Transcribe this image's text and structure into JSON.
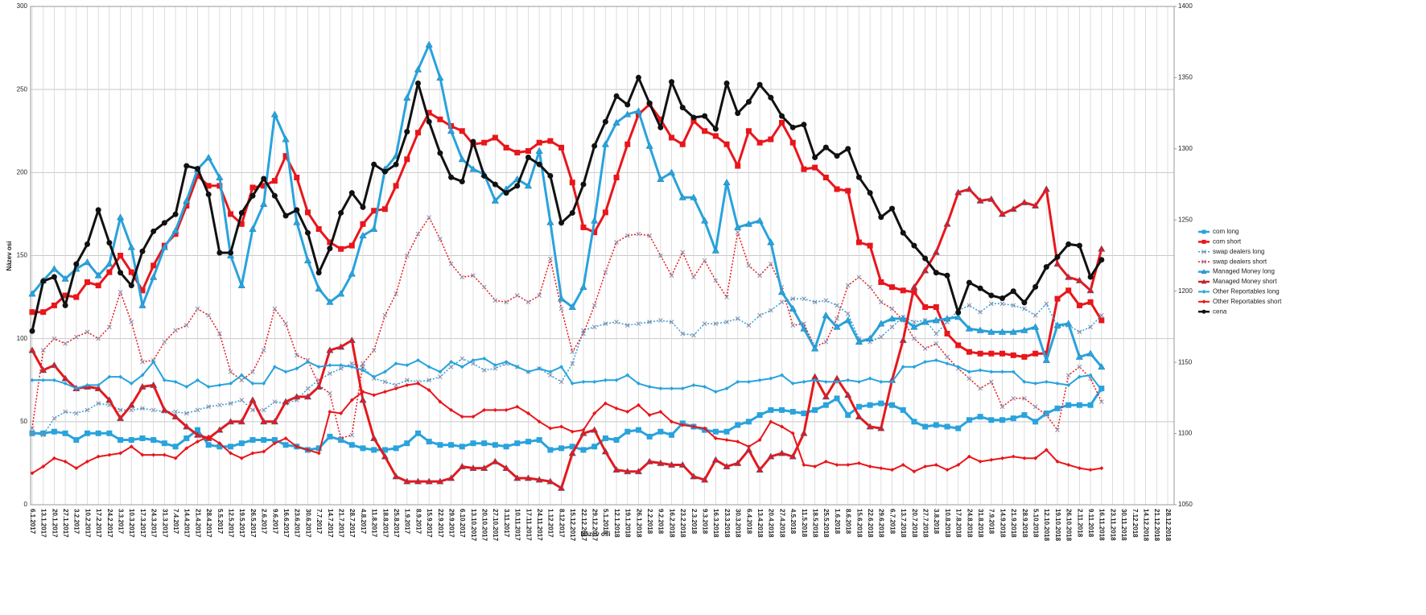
{
  "chart_data": {
    "type": "line",
    "x_label": "Název osi",
    "y_label": "Název osi",
    "grid": true,
    "legend": "right",
    "ylim": [
      0,
      300
    ],
    "yticks": [
      0,
      50,
      100,
      150,
      200,
      250,
      300
    ],
    "y2lim": [
      1050,
      1400
    ],
    "y2ticks": [
      1050,
      1100,
      1150,
      1200,
      1250,
      1300,
      1350,
      1400
    ],
    "categories": [
      "6.1.2017",
      "13.1.2017",
      "20.1.2017",
      "27.1.2017",
      "3.2.2017",
      "10.2.2017",
      "17.2.2017",
      "24.2.2017",
      "3.3.2017",
      "10.3.2017",
      "17.3.2017",
      "24.3.2017",
      "31.3.2017",
      "7.4.2017",
      "14.4.2017",
      "21.4.2017",
      "28.4.2017",
      "5.5.2017",
      "12.5.2017",
      "19.5.2017",
      "26.5.2017",
      "2.6.2017",
      "9.6.2017",
      "16.6.2017",
      "23.6.2017",
      "30.6.2017",
      "7.7.2017",
      "14.7.2017",
      "21.7.2017",
      "28.7.2017",
      "4.8.2017",
      "11.8.2017",
      "18.8.2017",
      "25.8.2017",
      "1.9.2017",
      "8.9.2017",
      "15.9.2017",
      "22.9.2017",
      "29.9.2017",
      "6.10.2017",
      "13.10.2017",
      "20.10.2017",
      "27.10.2017",
      "3.11.2017",
      "10.11.2017",
      "17.11.2017",
      "24.11.2017",
      "1.12.2017",
      "8.12.2017",
      "15.12.2017",
      "22.12.2017",
      "29.12.2017",
      "5.1.2018",
      "12.1.2018",
      "19.1.2018",
      "26.1.2018",
      "2.2.2018",
      "9.2.2018",
      "16.2.2018",
      "23.2.2018",
      "2.3.2018",
      "9.3.2018",
      "16.3.2018",
      "23.3.2018",
      "30.3.2018",
      "6.4.2018",
      "13.4.2018",
      "20.4.2018",
      "27.4.2018",
      "4.5.2018",
      "11.5.2018",
      "18.5.2018",
      "25.5.2018",
      "1.6.2018",
      "8.6.2018",
      "15.6.2018",
      "22.6.2018",
      "29.6.2018",
      "6.7.2018",
      "13.7.2018",
      "20.7.2018",
      "27.7.2018",
      "3.8.2018",
      "10.8.2018",
      "17.8.2018",
      "24.8.2018",
      "31.8.2018",
      "7.9.2018",
      "14.9.2018",
      "21.9.2018",
      "28.9.2018",
      "5.10.2018",
      "12.10.2018",
      "19.10.2018",
      "26.10.2018",
      "2.11.2018",
      "9.11.2018",
      "16.11.2018",
      "23.11.2018",
      "30.11.2018",
      "7.12.2018",
      "14.12.2018",
      "21.12.2018",
      "28.12.2018"
    ],
    "series": [
      {
        "name": "com long",
        "color": "#29a3dc",
        "marker": "square",
        "dashed": false,
        "width": 3,
        "values": [
          43,
          43,
          44,
          43,
          39,
          43,
          43,
          43,
          39,
          39,
          40,
          39,
          37,
          35,
          40,
          45,
          36,
          35,
          35,
          37,
          39,
          39,
          39,
          36,
          35,
          33,
          34,
          41,
          39,
          36,
          34,
          33,
          33,
          34,
          37,
          43,
          38,
          36,
          36,
          35,
          37,
          37,
          36,
          35,
          37,
          38,
          39,
          33,
          34,
          35,
          33,
          35,
          40,
          39,
          44,
          45,
          41,
          44,
          42,
          49,
          47,
          45,
          44,
          44,
          48,
          50,
          54,
          57,
          57,
          56,
          55,
          57,
          60,
          64,
          54,
          59,
          60,
          61,
          60,
          57,
          50,
          47,
          48,
          47,
          46,
          51,
          53,
          51,
          51,
          52,
          54,
          50,
          55,
          58,
          60,
          60,
          60,
          70,
          null,
          null,
          null,
          null,
          null,
          null
        ]
      },
      {
        "name": "com short",
        "color": "#e8161b",
        "marker": "square",
        "dashed": false,
        "width": 3,
        "values": [
          116,
          116,
          120,
          126,
          125,
          134,
          132,
          140,
          150,
          140,
          129,
          144,
          156,
          163,
          180,
          198,
          192,
          192,
          175,
          169,
          191,
          192,
          195,
          210,
          197,
          176,
          166,
          158,
          154,
          156,
          169,
          177,
          178,
          192,
          208,
          224,
          236,
          232,
          228,
          225,
          217,
          218,
          221,
          215,
          212,
          213,
          218,
          219,
          215,
          194,
          167,
          164,
          176,
          197,
          217,
          235,
          241,
          232,
          221,
          217,
          231,
          225,
          222,
          217,
          204,
          225,
          218,
          220,
          230,
          218,
          202,
          203,
          197,
          190,
          189,
          158,
          156,
          134,
          131,
          129,
          128,
          119,
          119,
          103,
          96,
          92,
          91,
          91,
          91,
          90,
          89,
          91,
          91,
          124,
          129,
          120,
          122,
          111,
          null,
          null,
          null,
          null,
          null,
          null
        ]
      },
      {
        "name": "swap dealers long",
        "color": "#29a3dc",
        "marker": "x",
        "dashed": true,
        "width": 1.5,
        "values": [
          43,
          42,
          52,
          56,
          55,
          57,
          61,
          60,
          57,
          57,
          58,
          57,
          56,
          56,
          55,
          57,
          59,
          60,
          61,
          63,
          57,
          57,
          62,
          61,
          63,
          70,
          75,
          79,
          82,
          85,
          83,
          76,
          74,
          72,
          75,
          74,
          75,
          77,
          83,
          88,
          85,
          81,
          82,
          85,
          83,
          80,
          82,
          78,
          74,
          85,
          105,
          107,
          109,
          110,
          108,
          109,
          110,
          111,
          110,
          103,
          102,
          109,
          109,
          110,
          112,
          108,
          114,
          117,
          122,
          124,
          124,
          122,
          123,
          120,
          115,
          100,
          98,
          101,
          107,
          113,
          110,
          111,
          103,
          110,
          117,
          120,
          116,
          121,
          121,
          120,
          118,
          114,
          121,
          107,
          108,
          104,
          107,
          114,
          null,
          null,
          null,
          null,
          null,
          null
        ]
      },
      {
        "name": "swap dealers short",
        "color": "#e8161b",
        "marker": "x",
        "dashed": true,
        "width": 1.5,
        "values": [
          46,
          93,
          100,
          97,
          101,
          104,
          100,
          107,
          128,
          110,
          86,
          87,
          98,
          105,
          108,
          118,
          114,
          103,
          80,
          75,
          80,
          93,
          118,
          109,
          90,
          87,
          72,
          67,
          40,
          42,
          85,
          93,
          114,
          127,
          150,
          163,
          173,
          160,
          145,
          137,
          138,
          131,
          123,
          122,
          126,
          122,
          126,
          148,
          118,
          92,
          103,
          120,
          140,
          158,
          162,
          163,
          162,
          150,
          138,
          152,
          137,
          147,
          135,
          125,
          164,
          144,
          138,
          145,
          131,
          108,
          109,
          95,
          98,
          112,
          132,
          137,
          131,
          122,
          118,
          111,
          100,
          94,
          97,
          89,
          82,
          76,
          70,
          74,
          59,
          64,
          64,
          59,
          54,
          45,
          78,
          83,
          76,
          62,
          null,
          null,
          null,
          null,
          null,
          null
        ]
      },
      {
        "name": "Managed Money long",
        "color": "#29a3dc",
        "marker": "triangle",
        "dashed": false,
        "width": 3,
        "values": [
          127,
          135,
          142,
          136,
          142,
          146,
          138,
          145,
          173,
          155,
          120,
          137,
          155,
          165,
          183,
          202,
          209,
          197,
          150,
          132,
          166,
          181,
          235,
          220,
          170,
          147,
          130,
          122,
          127,
          139,
          162,
          166,
          202,
          210,
          245,
          262,
          277,
          257,
          225,
          208,
          202,
          199,
          183,
          190,
          196,
          192,
          213,
          170,
          124,
          119,
          131,
          171,
          217,
          230,
          235,
          237,
          216,
          196,
          200,
          185,
          185,
          171,
          153,
          194,
          167,
          169,
          171,
          158,
          128,
          118,
          106,
          94,
          114,
          107,
          111,
          98,
          100,
          109,
          112,
          112,
          107,
          110,
          111,
          112,
          113,
          106,
          105,
          104,
          104,
          104,
          105,
          107,
          87,
          108,
          109,
          89,
          91,
          83,
          null,
          null,
          null,
          null,
          null,
          null
        ]
      },
      {
        "name": "Managed Money short",
        "color": "#e8161b",
        "marker": "triangle",
        "dashed": false,
        "width": 3,
        "values": [
          93,
          81,
          84,
          76,
          70,
          71,
          70,
          63,
          52,
          60,
          71,
          72,
          57,
          53,
          47,
          42,
          40,
          45,
          50,
          50,
          63,
          50,
          50,
          62,
          65,
          65,
          71,
          93,
          95,
          99,
          63,
          40,
          29,
          17,
          14,
          14,
          14,
          14,
          16,
          23,
          22,
          22,
          26,
          22,
          16,
          16,
          15,
          14,
          10,
          31,
          43,
          45,
          32,
          21,
          20,
          20,
          26,
          25,
          24,
          24,
          17,
          15,
          27,
          23,
          25,
          33,
          21,
          29,
          31,
          29,
          43,
          77,
          65,
          76,
          66,
          53,
          47,
          46,
          75,
          99,
          131,
          141,
          152,
          169,
          188,
          190,
          183,
          184,
          175,
          178,
          182,
          180,
          190,
          145,
          137,
          135,
          129,
          154,
          null,
          null,
          null,
          null,
          null,
          null
        ]
      },
      {
        "name": "Other Reportables long",
        "color": "#29a3dc",
        "marker": "diamond",
        "dashed": false,
        "width": 2,
        "values": [
          75,
          75,
          75,
          73,
          70,
          72,
          72,
          77,
          77,
          73,
          78,
          86,
          75,
          74,
          71,
          75,
          71,
          72,
          73,
          78,
          73,
          73,
          83,
          80,
          82,
          86,
          83,
          84,
          84,
          83,
          81,
          77,
          80,
          85,
          84,
          87,
          83,
          80,
          86,
          83,
          87,
          88,
          84,
          86,
          83,
          80,
          82,
          80,
          83,
          73,
          74,
          74,
          75,
          75,
          78,
          73,
          71,
          70,
          70,
          70,
          72,
          71,
          68,
          70,
          74,
          74,
          75,
          76,
          78,
          73,
          74,
          75,
          74,
          74,
          75,
          74,
          76,
          74,
          74,
          83,
          83,
          86,
          87,
          85,
          83,
          80,
          81,
          80,
          80,
          80,
          74,
          73,
          74,
          73,
          72,
          77,
          78,
          69,
          null,
          null,
          null,
          null,
          null,
          null
        ]
      },
      {
        "name": "Other Reportables short",
        "color": "#e8161b",
        "marker": "diamond",
        "dashed": false,
        "width": 2,
        "values": [
          19,
          23,
          28,
          26,
          22,
          26,
          29,
          30,
          31,
          35,
          30,
          30,
          30,
          28,
          34,
          38,
          41,
          37,
          31,
          28,
          31,
          32,
          37,
          40,
          35,
          33,
          31,
          56,
          55,
          63,
          68,
          66,
          68,
          70,
          72,
          73,
          69,
          62,
          57,
          53,
          53,
          57,
          57,
          57,
          59,
          55,
          50,
          46,
          47,
          44,
          45,
          55,
          61,
          58,
          56,
          60,
          54,
          56,
          50,
          48,
          47,
          46,
          40,
          39,
          38,
          35,
          39,
          50,
          47,
          43,
          24,
          23,
          26,
          24,
          24,
          25,
          23,
          22,
          21,
          24,
          20,
          23,
          24,
          21,
          24,
          29,
          26,
          27,
          28,
          29,
          28,
          28,
          33,
          26,
          24,
          22,
          21,
          22,
          null,
          null,
          null,
          null,
          null,
          null
        ]
      },
      {
        "name": "cena",
        "color": "#111111",
        "marker": "circle",
        "dashed": false,
        "width": 3,
        "axis": "y2",
        "values": [
          1172,
          1207,
          1210,
          1190,
          1219,
          1233,
          1257,
          1234,
          1213,
          1204,
          1228,
          1242,
          1248,
          1254,
          1288,
          1286,
          1268,
          1227,
          1227,
          1255,
          1267,
          1279,
          1267,
          1253,
          1257,
          1241,
          1213,
          1230,
          1255,
          1269,
          1259,
          1289,
          1284,
          1289,
          1312,
          1346,
          1319,
          1297,
          1280,
          1277,
          1305,
          1281,
          1275,
          1269,
          1274,
          1294,
          1289,
          1281,
          1248,
          1255,
          1275,
          1302,
          1319,
          1337,
          1331,
          1350,
          1332,
          1315,
          1347,
          1329,
          1322,
          1323,
          1314,
          1346,
          1325,
          1333,
          1345,
          1336,
          1323,
          1315,
          1317,
          1294,
          1301,
          1295,
          1300,
          1280,
          1269,
          1252,
          1258,
          1241,
          1232,
          1223,
          1213,
          1211,
          1185,
          1206,
          1202,
          1197,
          1195,
          1200,
          1192,
          1203,
          1217,
          1224,
          1233,
          1232,
          1210,
          1222,
          null,
          null,
          null,
          null,
          null,
          null
        ]
      }
    ]
  }
}
